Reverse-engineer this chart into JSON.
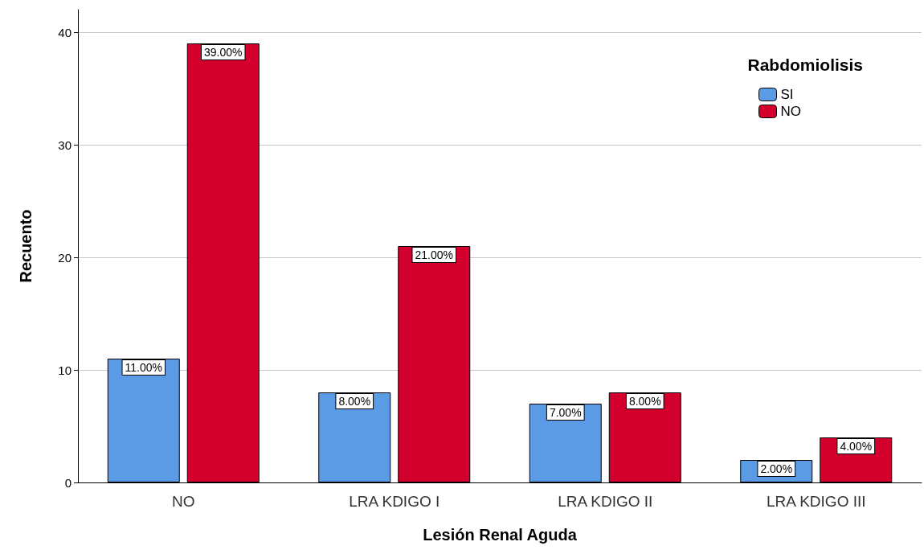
{
  "chart_data": {
    "type": "bar",
    "xlabel": "Lesión Renal Aguda",
    "ylabel": "Recuento",
    "legend_title": "Rabdomiolisis",
    "categories": [
      "NO",
      "LRA KDIGO I",
      "LRA KDIGO II",
      "LRA KDIGO III"
    ],
    "series": [
      {
        "name": "SI",
        "color": "#5b9ae4",
        "values": [
          11,
          8,
          7,
          2
        ],
        "value_labels": [
          "11.00%",
          "8.00%",
          "7.00%",
          "2.00%"
        ]
      },
      {
        "name": "NO",
        "color": "#d3002d",
        "values": [
          39,
          21,
          8,
          4
        ],
        "value_labels": [
          "39.00%",
          "21.00%",
          "8.00%",
          "4.00%"
        ]
      }
    ],
    "ylim": [
      0,
      42
    ],
    "yticks": [
      0,
      10,
      20,
      30,
      40
    ],
    "grid": "y",
    "legend": "top right"
  }
}
